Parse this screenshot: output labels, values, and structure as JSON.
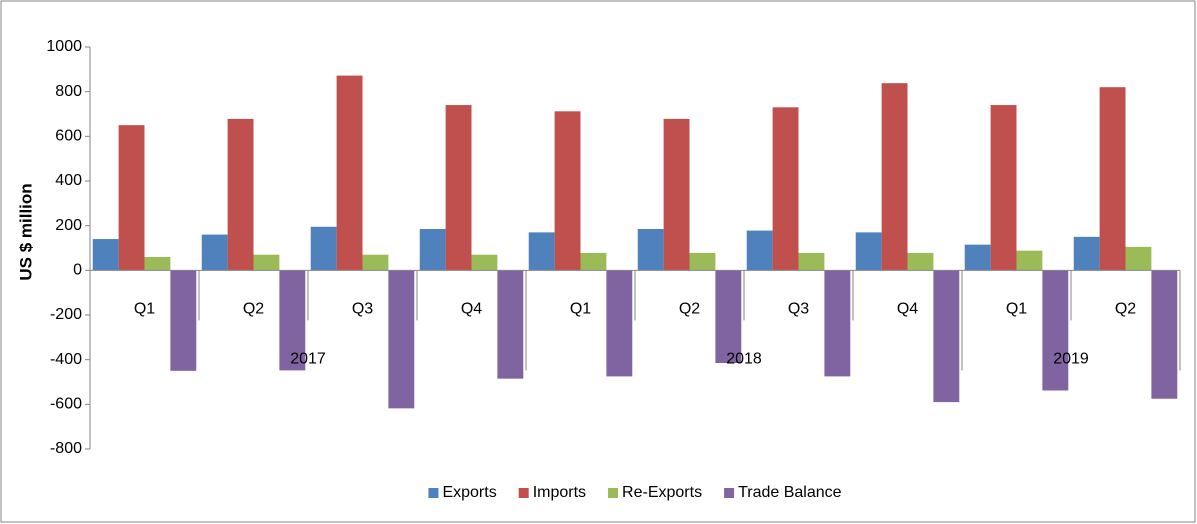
{
  "chart_data": {
    "type": "bar",
    "y_label": "US $ million",
    "categories": [
      "Q1",
      "Q2",
      "Q3",
      "Q4",
      "Q1",
      "Q2",
      "Q3",
      "Q4",
      "Q1",
      "Q2"
    ],
    "groups": [
      {
        "label": "2017",
        "count": 4
      },
      {
        "label": "2018",
        "count": 4
      },
      {
        "label": "2019",
        "count": 2
      }
    ],
    "series": [
      {
        "name": "Exports",
        "color": "#4f81bd",
        "values": [
          140,
          160,
          195,
          185,
          170,
          185,
          178,
          170,
          115,
          150
        ]
      },
      {
        "name": "Imports",
        "color": "#c0504d",
        "values": [
          650,
          678,
          872,
          740,
          712,
          678,
          730,
          838,
          740,
          820
        ]
      },
      {
        "name": "Re-Exports",
        "color": "#9bbb59",
        "values": [
          60,
          70,
          70,
          70,
          78,
          78,
          78,
          78,
          88,
          105
        ]
      },
      {
        "name": "Trade Balance",
        "color": "#8064a2",
        "values": [
          -450,
          -448,
          -618,
          -485,
          -475,
          -415,
          -475,
          -590,
          -538,
          -575
        ]
      }
    ],
    "ylim": [
      -800,
      1000
    ],
    "yticks": [
      -800,
      -600,
      -400,
      -200,
      0,
      200,
      400,
      600,
      800,
      1000
    ],
    "grid": false,
    "legend": "bottom"
  }
}
